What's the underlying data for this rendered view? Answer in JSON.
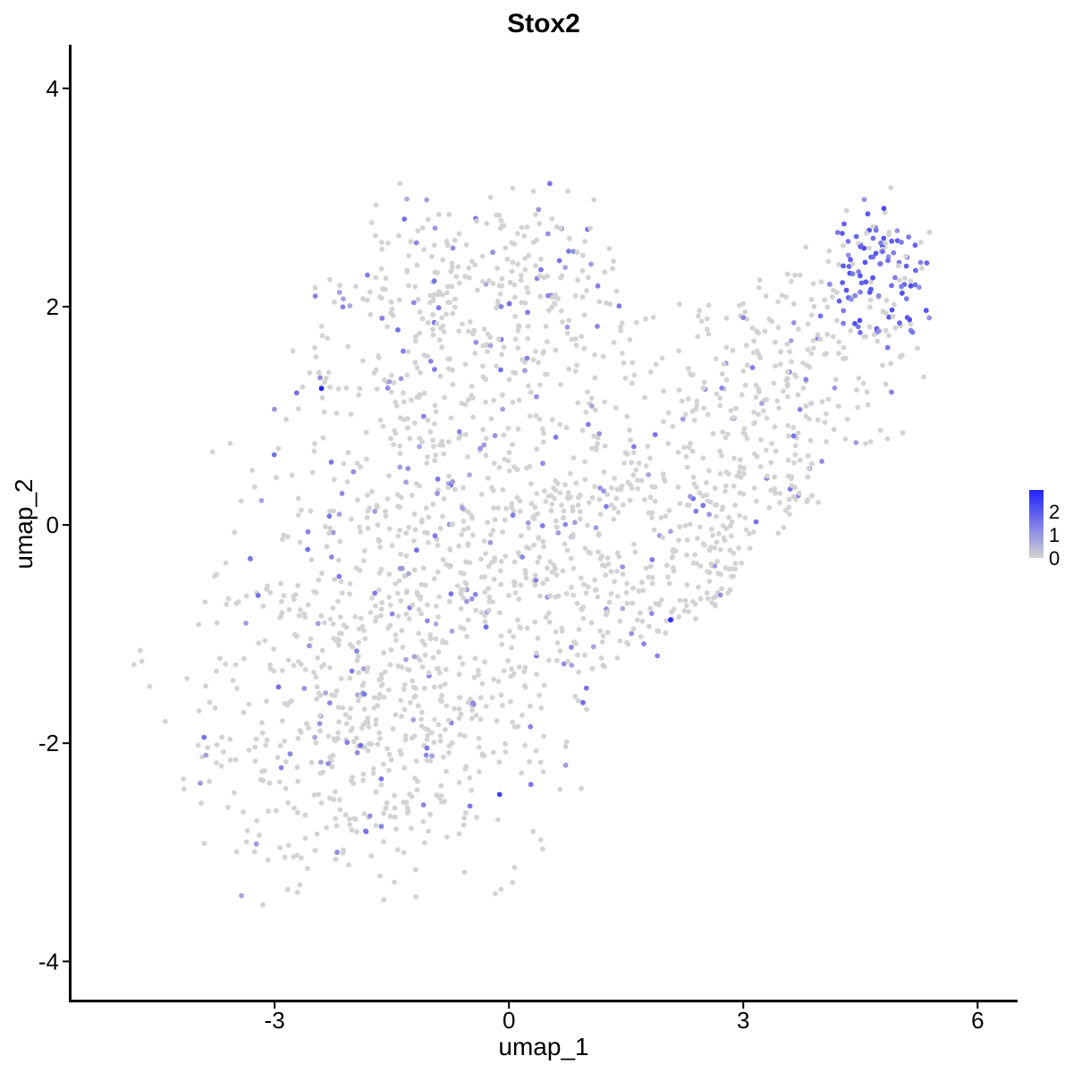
{
  "chart_data": {
    "type": "scatter",
    "title": "Stox2",
    "xlabel": "umap_1",
    "ylabel": "umap_2",
    "xlim": [
      -5.6,
      6.5
    ],
    "ylim": [
      -4.35,
      4.4
    ],
    "xticks": [
      -3,
      0,
      3,
      6
    ],
    "xtick_labels": [
      "-3",
      "0",
      "3",
      "6"
    ],
    "yticks": [
      4,
      2,
      0,
      -2,
      -4
    ],
    "ytick_labels": [
      "4",
      "2",
      "0",
      "-2",
      "-4"
    ],
    "grid": false,
    "legend": {
      "placement": "right",
      "type": "colorbar",
      "labels": [
        "2",
        "1",
        "0"
      ],
      "min": 0,
      "max": 2.3,
      "low_color": "#d3d3d3",
      "high_color": "#2222ff"
    },
    "point_color_scale": {
      "low": "#d3d3d3",
      "high": "#2222ff"
    },
    "highlighted_points": [
      {
        "x": -2.4,
        "y": 1.25,
        "value": 2.3
      },
      {
        "x": 2.07,
        "y": -0.87,
        "value": 2.2
      },
      {
        "x": -0.12,
        "y": -2.47,
        "value": 1.9
      },
      {
        "x": -2.3,
        "y": 0.08,
        "value": 1.2
      },
      {
        "x": -1.9,
        "y": -2.02,
        "value": 1.3
      },
      {
        "x": 4.8,
        "y": 2.9,
        "value": 1.8
      },
      {
        "x": 4.5,
        "y": 2.55,
        "value": 1.5
      },
      {
        "x": 4.9,
        "y": 2.6,
        "value": 1.5
      },
      {
        "x": 5.1,
        "y": 1.9,
        "value": 1.6
      },
      {
        "x": 5.35,
        "y": 2.4,
        "value": 1.4
      },
      {
        "x": 5.2,
        "y": 2.2,
        "value": 1.3
      },
      {
        "x": 4.7,
        "y": 2.7,
        "value": 1.2
      },
      {
        "x": 5.0,
        "y": 1.85,
        "value": 1.4
      },
      {
        "x": 4.4,
        "y": 2.3,
        "value": 1.1
      },
      {
        "x": -0.1,
        "y": 2.0,
        "value": 1.0
      },
      {
        "x": -1.0,
        "y": 1.5,
        "value": 1.0
      },
      {
        "x": 0.5,
        "y": 2.1,
        "value": 1.0
      },
      {
        "x": -2.2,
        "y": -3.0,
        "value": 0.9
      },
      {
        "x": 1.9,
        "y": -1.2,
        "value": 1.0
      },
      {
        "x": 3.0,
        "y": 1.9,
        "value": 1.0
      }
    ],
    "clusters": [
      {
        "cx": -1.8,
        "cy": -1.8,
        "sx": 1.15,
        "sy": 1.0,
        "n": 520
      },
      {
        "cx": -1.0,
        "cy": 0.3,
        "sx": 1.25,
        "sy": 1.3,
        "n": 560
      },
      {
        "cx": 1.2,
        "cy": -0.3,
        "sx": 1.2,
        "sy": 1.0,
        "n": 340
      },
      {
        "cx": -0.2,
        "cy": 2.2,
        "sx": 1.2,
        "sy": 0.5,
        "n": 220
      },
      {
        "cx": 3.5,
        "cy": 1.2,
        "sx": 1.1,
        "sy": 0.8,
        "n": 280
      },
      {
        "cx": 4.8,
        "cy": 2.3,
        "sx": 0.45,
        "sy": 0.35,
        "n": 110
      },
      {
        "cx": 3.0,
        "cy": -0.3,
        "sx": 0.9,
        "sy": 0.6,
        "n": 140
      }
    ],
    "outliers": [
      {
        "x": -4.8,
        "y": -1.28
      },
      {
        "x": -4.72,
        "y": -1.15
      },
      {
        "x": -4.7,
        "y": -1.25
      },
      {
        "x": -4.6,
        "y": -1.48
      },
      {
        "x": -4.4,
        "y": -1.8
      }
    ]
  }
}
